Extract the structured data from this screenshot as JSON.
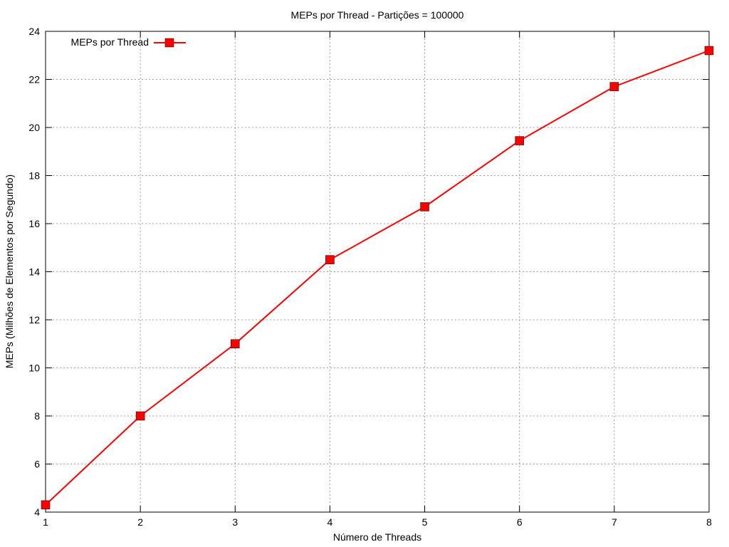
{
  "chart_data": {
    "type": "line",
    "title": "MEPs por Thread - Partições = 100000",
    "xlabel": "Número de Threads",
    "ylabel": "MEPs (Milhões de Elementos por Segundo)",
    "xlim": [
      1,
      8
    ],
    "ylim": [
      4,
      24
    ],
    "xticks": [
      1,
      2,
      3,
      4,
      5,
      6,
      7,
      8
    ],
    "yticks": [
      4,
      6,
      8,
      10,
      12,
      14,
      16,
      18,
      20,
      22,
      24
    ],
    "grid": true,
    "legend_position": "top-left",
    "series": [
      {
        "name": "MEPs por Thread",
        "color": "#ff0000",
        "marker": "square",
        "x": [
          1,
          2,
          3,
          4,
          5,
          6,
          7,
          8
        ],
        "y": [
          4.3,
          8.0,
          11.0,
          14.5,
          16.7,
          19.45,
          21.7,
          23.2
        ]
      }
    ]
  }
}
